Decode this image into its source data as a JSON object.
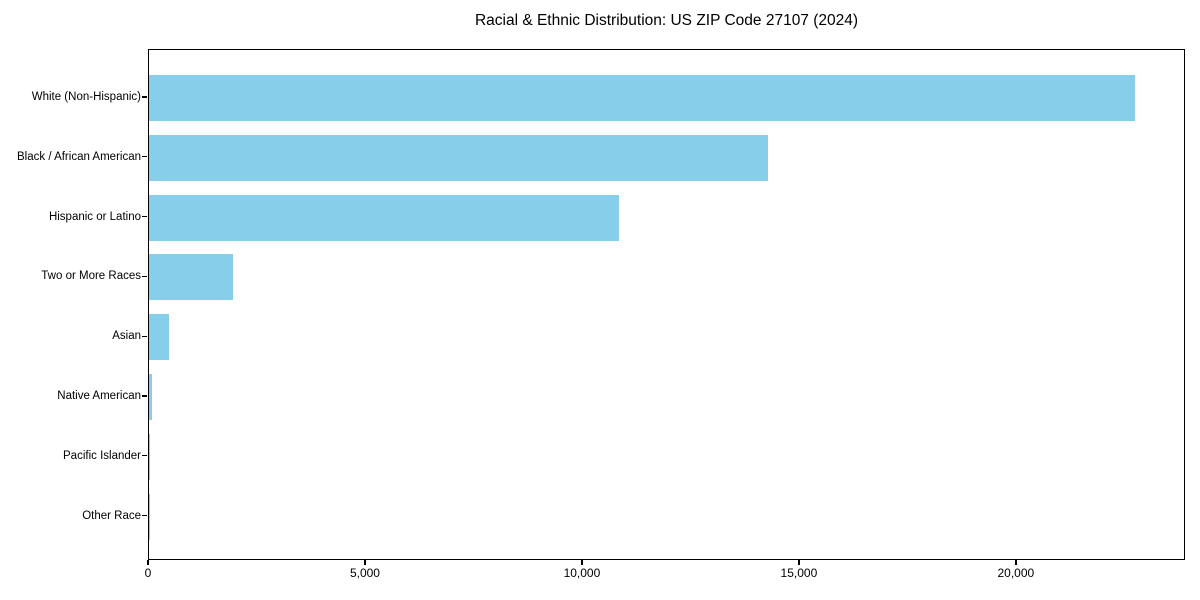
{
  "title": "Racial & Ethnic Distribution: US ZIP Code 27107 (2024)",
  "colors": {
    "bar": "#87CEEB",
    "axis": "#000000",
    "text": "#000000",
    "background": "#ffffff"
  },
  "chart_data": {
    "type": "bar",
    "orientation": "horizontal",
    "title": "Racial & Ethnic Distribution: US ZIP Code 27107 (2024)",
    "xlabel": "",
    "ylabel": "",
    "categories": [
      "White (Non-Hispanic)",
      "Black / African American",
      "Hispanic or Latino",
      "Two or More Races",
      "Asian",
      "Native American",
      "Pacific Islander",
      "Other Race"
    ],
    "values": [
      22760,
      14290,
      10860,
      1935,
      460,
      70,
      15,
      25
    ],
    "xlim": [
      0,
      23898
    ],
    "x_ticks": [
      0,
      5000,
      10000,
      15000,
      20000
    ],
    "x_tick_labels": [
      "0",
      "5,000",
      "10,000",
      "15,000",
      "20,000"
    ],
    "grid": false,
    "legend": false,
    "bar_color": "#87CEEB"
  }
}
